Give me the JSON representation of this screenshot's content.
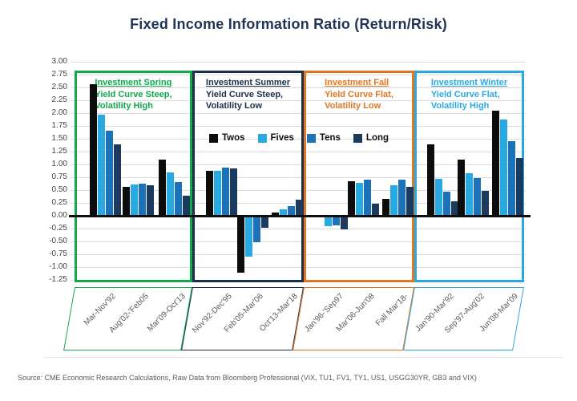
{
  "chart_data": {
    "type": "bar",
    "title": "Fixed Income Information Ratio (Return/Risk)",
    "xlabel": "",
    "ylabel": "",
    "ylim": [
      -1.25,
      3.0
    ],
    "y_tick_step": 0.25,
    "y_ticks": [
      "3.00",
      "2.75",
      "2.50",
      "2.25",
      "2.00",
      "1.75",
      "1.50",
      "1.25",
      "1.00",
      "0.75",
      "0.50",
      "0.25",
      "0.00",
      "-0.25",
      "-0.50",
      "-0.75",
      "-1.00",
      "-1.25"
    ],
    "grid": "horizontal",
    "legend_position": "inside-top-center",
    "series": [
      {
        "name": "Twos",
        "color": "#0D0D0D"
      },
      {
        "name": "Fives",
        "color": "#29A9E1"
      },
      {
        "name": "Tens",
        "color": "#1B72B8"
      },
      {
        "name": "Long",
        "color": "#1B3A5F"
      }
    ],
    "quadrants": [
      {
        "name": "Investment Spring",
        "sub1": "Yield Curve Steep,",
        "sub2": "Volatility High",
        "color": "#0FA94E",
        "groups": [
          {
            "label": "Mar-Nov'92",
            "values": [
              2.57,
              1.97,
              1.65,
              1.39
            ]
          },
          {
            "label": "Aug'02-'Feb05",
            "values": [
              0.57,
              0.61,
              0.62,
              0.6
            ]
          },
          {
            "label": "Mar'09-Oct'13",
            "values": [
              1.1,
              0.84,
              0.66,
              0.39
            ]
          }
        ]
      },
      {
        "name": "Investment Summer",
        "sub1": "Yield Curve Steep,",
        "sub2": "Volatility Low",
        "color": "#1B2F4B",
        "groups": [
          {
            "label": "Nov'92-Dec'95",
            "values": [
              0.87,
              0.88,
              0.94,
              0.92
            ]
          },
          {
            "label": "Feb'05-Mar'06",
            "values": [
              -1.11,
              -0.8,
              -0.52,
              -0.23
            ]
          },
          {
            "label": "Oct'13-Mar'18",
            "values": [
              0.06,
              0.12,
              0.19,
              0.31
            ]
          }
        ]
      },
      {
        "name": "Investment Fall",
        "sub1": "Yield Curve Flat,",
        "sub2": "Volatility Low",
        "color": "#E2751E",
        "groups": [
          {
            "label": "Jan'96-'Sep97",
            "values": [
              -0.03,
              -0.2,
              -0.18,
              -0.26
            ]
          },
          {
            "label": "Mar'06-Jun'08",
            "values": [
              0.67,
              0.64,
              0.7,
              0.24
            ]
          },
          {
            "label": "Fall Mar'18-",
            "values": [
              0.33,
              0.59,
              0.7,
              0.56
            ]
          }
        ]
      },
      {
        "name": "Investment Winter",
        "sub1": "Yield Curve Flat,",
        "sub2": "Volatility High",
        "color": "#29A9E1",
        "groups": [
          {
            "label": "Jan'90-Mar'92",
            "values": [
              1.39,
              0.72,
              0.47,
              0.28
            ]
          },
          {
            "label": "Sep'97-Aug'02",
            "values": [
              1.1,
              0.83,
              0.73,
              0.49
            ]
          },
          {
            "label": "Jun'08-Mar'09",
            "values": [
              2.05,
              1.88,
              1.46,
              1.13
            ]
          }
        ]
      }
    ]
  },
  "source": "Source: CME Economic Research Calculations, Raw Data from Bloomberg Professional (VIX, TU1, FV1, TY1, US1, USGG30YR, GB3 and VIX)",
  "colors": {
    "title": "#1E3356",
    "grid": "#DCDCDC",
    "zero_line": "#0D0D0D",
    "y_tick_text": "#454545",
    "x_tick_text": "#595959",
    "source_text": "#5A5A5A"
  }
}
